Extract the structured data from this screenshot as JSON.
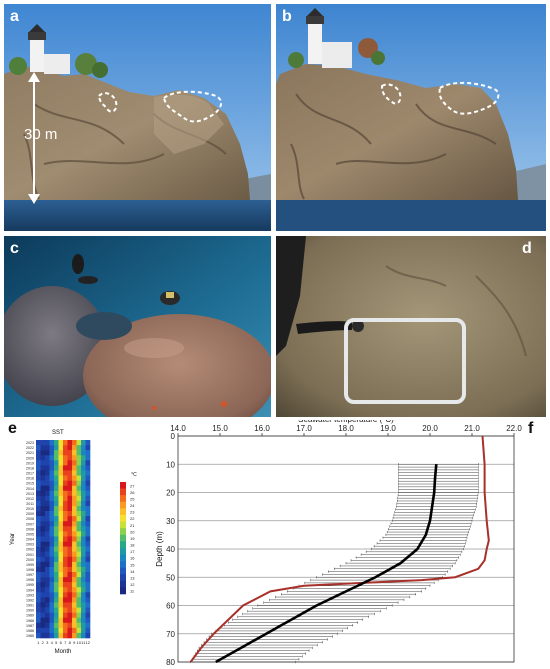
{
  "panels": {
    "a": {
      "label": "a",
      "scale_text": "30 m"
    },
    "b": {
      "label": "b"
    },
    "c": {
      "label": "c"
    },
    "d": {
      "label": "d"
    },
    "e": {
      "label": "e",
      "title": "SST",
      "xlabel": "Month",
      "ylabel": "Year",
      "month_ticks": [
        "1",
        "2",
        "3",
        "4",
        "5",
        "6",
        "7",
        "8",
        "9",
        "10",
        "11",
        "12"
      ],
      "year_ticks": [
        "2023",
        "2022",
        "2021",
        "2020",
        "2019",
        "2018",
        "2017",
        "2016",
        "2015",
        "2014",
        "2013",
        "2012",
        "2011",
        "2010",
        "2009",
        "2008",
        "2007",
        "2006",
        "2005",
        "2004",
        "2003",
        "2002",
        "2001",
        "2000",
        "1999",
        "1998",
        "1997",
        "1996",
        "1995",
        "1994",
        "1993",
        "1992",
        "1991",
        "1990",
        "1989",
        "1988",
        "1987",
        "1986",
        "1985"
      ],
      "colorbar_unit": "°C",
      "colorbar_ticks": [
        "27",
        "26",
        "25",
        "24",
        "23",
        "22",
        "21",
        "20",
        "19",
        "18",
        "17",
        "16",
        "15",
        "14",
        "13",
        "12",
        "11"
      ],
      "colorbar_colors": [
        "#d7191c",
        "#e8431c",
        "#f46d1f",
        "#fb9a22",
        "#fdbf28",
        "#f5e12c",
        "#c6e236",
        "#8fd14a",
        "#52bd6a",
        "#2aa88a",
        "#1f9aa6",
        "#1c87bf",
        "#1f70c9",
        "#2058c0",
        "#1f44ad",
        "#1c3596",
        "#1a2a80"
      ]
    },
    "f": {
      "label": "f",
      "chart_data": {
        "type": "line",
        "xlabel": "Seawater temperature (°C)",
        "ylabel": "Depth (m)",
        "xlim": [
          14.0,
          22.0
        ],
        "ylim": [
          0,
          80
        ],
        "x_ticks": [
          "14.0",
          "15.0",
          "16.0",
          "17.0",
          "18.0",
          "19.0",
          "20.0",
          "21.0",
          "22.0"
        ],
        "y_ticks": [
          "0",
          "10",
          "20",
          "30",
          "40",
          "50",
          "60",
          "70",
          "80"
        ],
        "grid": "horizontal",
        "series": [
          {
            "color": "#000000",
            "style": "mean",
            "depth": [
              10,
              15,
              20,
              25,
              30,
              35,
              40,
              45,
              50,
              55,
              60,
              65,
              70,
              75,
              80
            ],
            "temperature": [
              20.15,
              20.12,
              20.1,
              20.05,
              20.0,
              19.9,
              19.7,
              19.3,
              18.7,
              18.0,
              17.3,
              16.7,
              16.1,
              15.5,
              14.9
            ]
          },
          {
            "color": "#a8302a",
            "style": "max",
            "depth": [
              0,
              10,
              20,
              30,
              37,
              40,
              44,
              47,
              50,
              51,
              52,
              53,
              55,
              60,
              65,
              70,
              75,
              80
            ],
            "temperature": [
              21.25,
              21.3,
              21.3,
              21.35,
              21.4,
              21.35,
              21.3,
              21.15,
              20.6,
              19.8,
              18.4,
              17.0,
              16.2,
              15.55,
              15.2,
              14.85,
              14.55,
              14.3
            ]
          },
          {
            "color": "#444444",
            "style": "range",
            "depth": [
              10,
              15,
              20,
              25,
              30,
              35,
              40,
              45,
              50,
              55,
              60,
              65,
              70,
              75,
              80
            ],
            "min": [
              19.25,
              19.25,
              19.25,
              19.2,
              19.1,
              18.95,
              18.6,
              18.0,
              17.3,
              16.6,
              15.9,
              15.3,
              14.8,
              14.5,
              14.3
            ],
            "max": [
              21.15,
              21.15,
              21.15,
              21.1,
              21.0,
              20.9,
              20.8,
              20.6,
              20.3,
              19.8,
              19.1,
              18.4,
              17.8,
              17.2,
              16.8
            ]
          }
        ]
      }
    }
  }
}
